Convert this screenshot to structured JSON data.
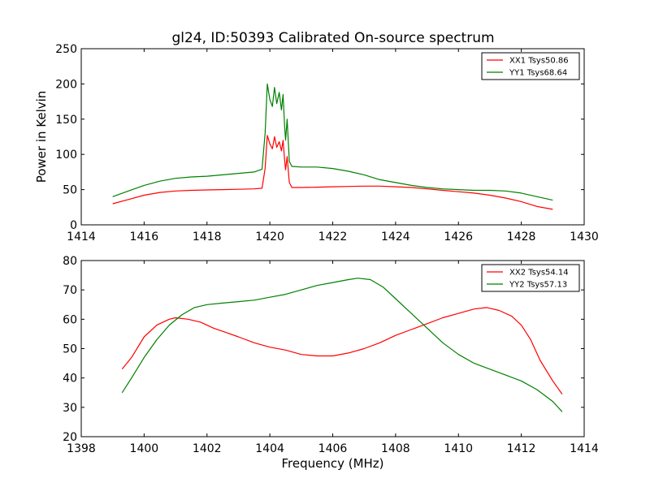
{
  "figure": {
    "title": "gl24, ID:50393 Calibrated On-source spectrum"
  },
  "chart_data": [
    {
      "type": "line",
      "title": "gl24, ID:50393 Calibrated On-source spectrum",
      "xlabel": "",
      "ylabel": "Power in Kelvin",
      "xlim": [
        1414,
        1430
      ],
      "ylim": [
        0,
        250
      ],
      "xticks": [
        1414,
        1416,
        1418,
        1420,
        1422,
        1424,
        1426,
        1428,
        1430
      ],
      "yticks": [
        0,
        50,
        100,
        150,
        200,
        250
      ],
      "grid": false,
      "legend": "top-right",
      "series": [
        {
          "name": "XX1 Tsys50.86",
          "color": "#ff0000",
          "points": [
            [
              1415.0,
              30
            ],
            [
              1415.5,
              36
            ],
            [
              1416.0,
              42
            ],
            [
              1416.5,
              46
            ],
            [
              1417.0,
              48
            ],
            [
              1417.5,
              49
            ],
            [
              1418.0,
              49.5
            ],
            [
              1418.5,
              50
            ],
            [
              1419.0,
              50.5
            ],
            [
              1419.5,
              51
            ],
            [
              1419.75,
              52
            ],
            [
              1419.85,
              80
            ],
            [
              1419.92,
              127
            ],
            [
              1420.0,
              115
            ],
            [
              1420.08,
              108
            ],
            [
              1420.15,
              125
            ],
            [
              1420.22,
              110
            ],
            [
              1420.3,
              118
            ],
            [
              1420.37,
              105
            ],
            [
              1420.42,
              120
            ],
            [
              1420.47,
              92
            ],
            [
              1420.5,
              78
            ],
            [
              1420.55,
              97
            ],
            [
              1420.62,
              60
            ],
            [
              1420.7,
              53
            ],
            [
              1421.0,
              53
            ],
            [
              1421.5,
              53.5
            ],
            [
              1422.0,
              54
            ],
            [
              1422.5,
              54.5
            ],
            [
              1423.0,
              55
            ],
            [
              1423.5,
              55
            ],
            [
              1424.0,
              54
            ],
            [
              1424.5,
              53
            ],
            [
              1425.0,
              51
            ],
            [
              1425.5,
              49
            ],
            [
              1426.0,
              47
            ],
            [
              1426.5,
              45
            ],
            [
              1427.0,
              42
            ],
            [
              1427.5,
              38
            ],
            [
              1428.0,
              33
            ],
            [
              1428.5,
              26
            ],
            [
              1429.0,
              22
            ]
          ]
        },
        {
          "name": "YY1 Tsys68.64",
          "color": "#008000",
          "points": [
            [
              1415.0,
              40
            ],
            [
              1415.5,
              48
            ],
            [
              1416.0,
              56
            ],
            [
              1416.5,
              62
            ],
            [
              1417.0,
              66
            ],
            [
              1417.5,
              68
            ],
            [
              1418.0,
              69
            ],
            [
              1418.5,
              71
            ],
            [
              1419.0,
              73
            ],
            [
              1419.5,
              75
            ],
            [
              1419.75,
              79
            ],
            [
              1419.85,
              130
            ],
            [
              1419.92,
              200
            ],
            [
              1420.0,
              178
            ],
            [
              1420.08,
              168
            ],
            [
              1420.15,
              195
            ],
            [
              1420.22,
              172
            ],
            [
              1420.3,
              188
            ],
            [
              1420.37,
              163
            ],
            [
              1420.42,
              185
            ],
            [
              1420.47,
              140
            ],
            [
              1420.5,
              120
            ],
            [
              1420.55,
              150
            ],
            [
              1420.62,
              90
            ],
            [
              1420.7,
              83
            ],
            [
              1421.0,
              82
            ],
            [
              1421.5,
              82
            ],
            [
              1422.0,
              80
            ],
            [
              1422.5,
              76
            ],
            [
              1423.0,
              71
            ],
            [
              1423.5,
              64
            ],
            [
              1424.0,
              60
            ],
            [
              1424.5,
              56
            ],
            [
              1425.0,
              53
            ],
            [
              1425.5,
              51
            ],
            [
              1426.0,
              50
            ],
            [
              1426.5,
              49
            ],
            [
              1427.0,
              49
            ],
            [
              1427.5,
              48
            ],
            [
              1428.0,
              45
            ],
            [
              1428.5,
              40
            ],
            [
              1429.0,
              35
            ]
          ]
        }
      ]
    },
    {
      "type": "line",
      "title": "",
      "xlabel": "Frequency (MHz)",
      "ylabel": "",
      "xlim": [
        1398,
        1414
      ],
      "ylim": [
        20,
        80
      ],
      "xticks": [
        1398,
        1400,
        1402,
        1404,
        1406,
        1408,
        1410,
        1412,
        1414
      ],
      "yticks": [
        20,
        30,
        40,
        50,
        60,
        70,
        80
      ],
      "grid": false,
      "legend": "top-right",
      "series": [
        {
          "name": "XX2 Tsys54.14",
          "color": "#ff0000",
          "points": [
            [
              1399.3,
              43
            ],
            [
              1399.6,
              47
            ],
            [
              1400.0,
              54
            ],
            [
              1400.4,
              58
            ],
            [
              1400.8,
              60
            ],
            [
              1401.0,
              60.5
            ],
            [
              1401.4,
              60
            ],
            [
              1401.8,
              59
            ],
            [
              1402.2,
              57
            ],
            [
              1402.6,
              55.5
            ],
            [
              1403.0,
              54
            ],
            [
              1403.5,
              52
            ],
            [
              1404.0,
              50.5
            ],
            [
              1404.5,
              49.5
            ],
            [
              1405.0,
              48
            ],
            [
              1405.5,
              47.5
            ],
            [
              1406.0,
              47.5
            ],
            [
              1406.5,
              48.5
            ],
            [
              1407.0,
              50
            ],
            [
              1407.5,
              52
            ],
            [
              1408.0,
              54.5
            ],
            [
              1408.5,
              56.5
            ],
            [
              1409.0,
              58.5
            ],
            [
              1409.5,
              60.5
            ],
            [
              1410.0,
              62
            ],
            [
              1410.5,
              63.5
            ],
            [
              1410.9,
              64
            ],
            [
              1411.3,
              63
            ],
            [
              1411.7,
              61
            ],
            [
              1412.0,
              58
            ],
            [
              1412.3,
              53
            ],
            [
              1412.6,
              46
            ],
            [
              1413.0,
              39
            ],
            [
              1413.3,
              34.5
            ]
          ]
        },
        {
          "name": "YY2 Tsys57.13",
          "color": "#008000",
          "points": [
            [
              1399.3,
              35
            ],
            [
              1399.6,
              40
            ],
            [
              1400.0,
              47
            ],
            [
              1400.4,
              53
            ],
            [
              1400.8,
              58
            ],
            [
              1401.2,
              61.5
            ],
            [
              1401.6,
              64
            ],
            [
              1402.0,
              65
            ],
            [
              1402.5,
              65.5
            ],
            [
              1403.0,
              66
            ],
            [
              1403.5,
              66.5
            ],
            [
              1404.0,
              67.5
            ],
            [
              1404.5,
              68.5
            ],
            [
              1405.0,
              70
            ],
            [
              1405.5,
              71.5
            ],
            [
              1406.0,
              72.5
            ],
            [
              1406.5,
              73.5
            ],
            [
              1406.8,
              74
            ],
            [
              1407.2,
              73.5
            ],
            [
              1407.6,
              71
            ],
            [
              1408.0,
              67
            ],
            [
              1408.5,
              62
            ],
            [
              1409.0,
              57
            ],
            [
              1409.5,
              52
            ],
            [
              1410.0,
              48
            ],
            [
              1410.5,
              45
            ],
            [
              1411.0,
              43
            ],
            [
              1411.5,
              41
            ],
            [
              1412.0,
              39
            ],
            [
              1412.5,
              36
            ],
            [
              1413.0,
              32
            ],
            [
              1413.3,
              28.5
            ]
          ]
        }
      ]
    }
  ]
}
